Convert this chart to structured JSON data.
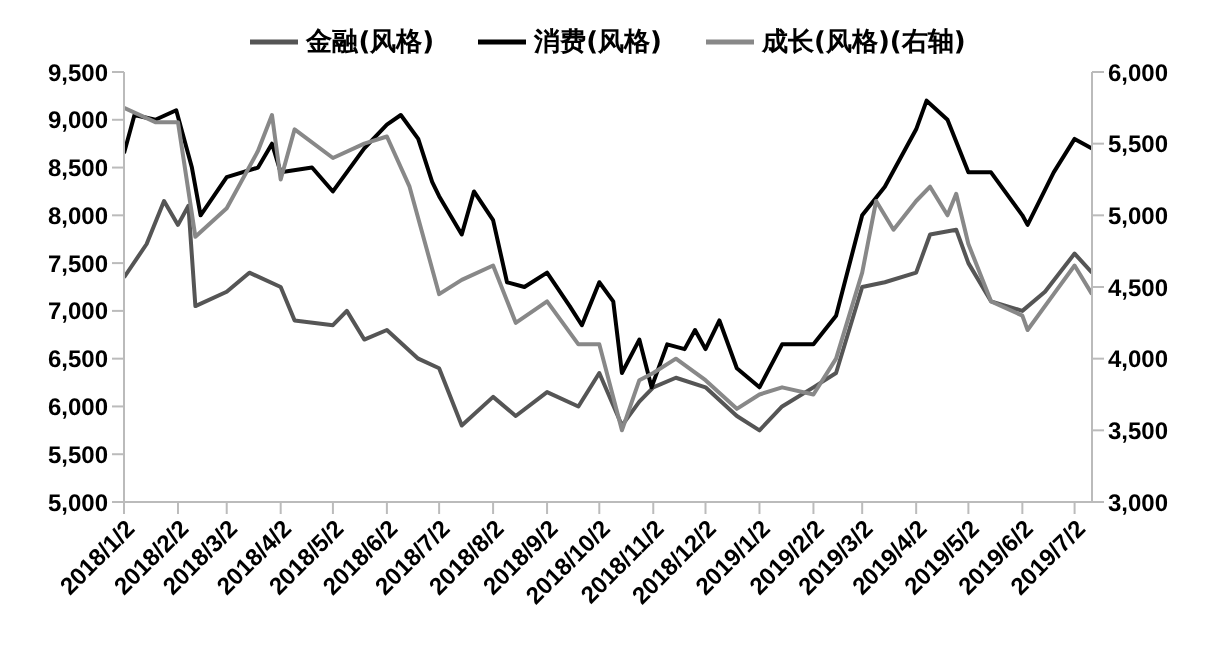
{
  "chart_data": {
    "type": "line",
    "legend": "top",
    "marker": "none",
    "line_style": "solid",
    "xlim": [
      "2018-01-02",
      "2019-07-12"
    ],
    "xticks": [
      {
        "value": "2018-01-02",
        "label": "2018/1/2"
      },
      {
        "value": "2018-02-02",
        "label": "2018/2/2"
      },
      {
        "value": "2018-03-02",
        "label": "2018/3/2"
      },
      {
        "value": "2018-04-02",
        "label": "2018/4/2"
      },
      {
        "value": "2018-05-02",
        "label": "2018/5/2"
      },
      {
        "value": "2018-06-02",
        "label": "2018/6/2"
      },
      {
        "value": "2018-07-02",
        "label": "2018/7/2"
      },
      {
        "value": "2018-08-02",
        "label": "2018/8/2"
      },
      {
        "value": "2018-09-02",
        "label": "2018/9/2"
      },
      {
        "value": "2018-10-02",
        "label": "2018/10/2"
      },
      {
        "value": "2018-11-02",
        "label": "2018/11/2"
      },
      {
        "value": "2018-12-02",
        "label": "2018/12/2"
      },
      {
        "value": "2019-01-02",
        "label": "2019/1/2"
      },
      {
        "value": "2019-02-02",
        "label": "2019/2/2"
      },
      {
        "value": "2019-03-02",
        "label": "2019/3/2"
      },
      {
        "value": "2019-04-02",
        "label": "2019/4/2"
      },
      {
        "value": "2019-05-02",
        "label": "2019/5/2"
      },
      {
        "value": "2019-06-02",
        "label": "2019/6/2"
      },
      {
        "value": "2019-07-02",
        "label": "2019/7/2"
      }
    ],
    "ylim": [
      5000,
      9500
    ],
    "yticks": [
      {
        "value": 5000,
        "label": "5,000"
      },
      {
        "value": 5500,
        "label": "5,500"
      },
      {
        "value": 6000,
        "label": "6,000"
      },
      {
        "value": 6500,
        "label": "6,500"
      },
      {
        "value": 7000,
        "label": "7,000"
      },
      {
        "value": 7500,
        "label": "7,500"
      },
      {
        "value": 8000,
        "label": "8,000"
      },
      {
        "value": 8500,
        "label": "8,500"
      },
      {
        "value": 9000,
        "label": "9,000"
      },
      {
        "value": 9500,
        "label": "9,500"
      }
    ],
    "y2lim": [
      3000,
      6000
    ],
    "y2ticks": [
      {
        "value": 3000,
        "label": "3,000"
      },
      {
        "value": 3500,
        "label": "3,500"
      },
      {
        "value": 4000,
        "label": "4,000"
      },
      {
        "value": 4500,
        "label": "4,500"
      },
      {
        "value": 5000,
        "label": "5,000"
      },
      {
        "value": 5500,
        "label": "5,500"
      },
      {
        "value": 6000,
        "label": "6,000"
      }
    ],
    "series": [
      {
        "name": "金融(风格)",
        "color": "#555555",
        "x": [
          "2018-01-02",
          "2018-01-15",
          "2018-01-25",
          "2018-02-02",
          "2018-02-08",
          "2018-02-12",
          "2018-03-02",
          "2018-03-15",
          "2018-04-02",
          "2018-04-10",
          "2018-05-02",
          "2018-05-10",
          "2018-05-20",
          "2018-06-02",
          "2018-06-20",
          "2018-07-02",
          "2018-07-15",
          "2018-08-02",
          "2018-08-15",
          "2018-09-02",
          "2018-09-20",
          "2018-10-02",
          "2018-10-15",
          "2018-10-25",
          "2018-11-02",
          "2018-11-15",
          "2018-12-02",
          "2018-12-20",
          "2019-01-02",
          "2019-01-15",
          "2019-02-02",
          "2019-02-15",
          "2019-03-02",
          "2019-03-15",
          "2019-04-02",
          "2019-04-10",
          "2019-04-25",
          "2019-05-02",
          "2019-05-15",
          "2019-06-02",
          "2019-06-15",
          "2019-07-02",
          "2019-07-12"
        ],
        "values": [
          7350,
          7700,
          8150,
          7900,
          8100,
          7050,
          7200,
          7400,
          7250,
          6900,
          6850,
          7000,
          6700,
          6800,
          6500,
          6400,
          5800,
          6100,
          5900,
          6150,
          6000,
          6350,
          5800,
          6050,
          6200,
          6300,
          6200,
          5900,
          5750,
          6000,
          6200,
          6350,
          7250,
          7300,
          7400,
          7800,
          7850,
          7500,
          7100,
          7000,
          7200,
          7600,
          7400
        ]
      },
      {
        "name": "消费(风格)",
        "color": "#000000",
        "x": [
          "2018-01-02",
          "2018-01-08",
          "2018-01-20",
          "2018-02-01",
          "2018-02-10",
          "2018-02-15",
          "2018-03-02",
          "2018-03-20",
          "2018-03-28",
          "2018-04-02",
          "2018-04-20",
          "2018-05-02",
          "2018-05-20",
          "2018-06-02",
          "2018-06-10",
          "2018-06-20",
          "2018-06-28",
          "2018-07-02",
          "2018-07-15",
          "2018-07-22",
          "2018-08-02",
          "2018-08-10",
          "2018-08-20",
          "2018-09-02",
          "2018-09-15",
          "2018-09-22",
          "2018-10-02",
          "2018-10-10",
          "2018-10-15",
          "2018-10-25",
          "2018-11-01",
          "2018-11-10",
          "2018-11-20",
          "2018-11-26",
          "2018-12-02",
          "2018-12-10",
          "2018-12-20",
          "2019-01-02",
          "2019-01-15",
          "2019-02-02",
          "2019-02-15",
          "2019-03-02",
          "2019-03-15",
          "2019-04-02",
          "2019-04-08",
          "2019-04-20",
          "2019-05-02",
          "2019-05-15",
          "2019-06-02",
          "2019-06-05",
          "2019-06-20",
          "2019-07-02",
          "2019-07-12"
        ],
        "values": [
          8650,
          9050,
          9000,
          9100,
          8500,
          8000,
          8400,
          8500,
          8750,
          8450,
          8500,
          8250,
          8700,
          8950,
          9050,
          8800,
          8350,
          8200,
          7800,
          8250,
          7950,
          7300,
          7250,
          7400,
          7050,
          6850,
          7300,
          7100,
          6350,
          6700,
          6200,
          6650,
          6600,
          6800,
          6600,
          6900,
          6400,
          6200,
          6650,
          6650,
          6950,
          8000,
          8300,
          8900,
          9200,
          9000,
          8450,
          8450,
          8000,
          7900,
          8450,
          8800,
          8700
        ]
      },
      {
        "name": "成长(风格)(右轴)",
        "color": "#888888",
        "axis": "y2",
        "x": [
          "2018-01-02",
          "2018-01-20",
          "2018-02-02",
          "2018-02-12",
          "2018-03-02",
          "2018-03-20",
          "2018-03-28",
          "2018-04-02",
          "2018-04-10",
          "2018-05-02",
          "2018-05-20",
          "2018-06-02",
          "2018-06-15",
          "2018-07-02",
          "2018-07-15",
          "2018-08-02",
          "2018-08-15",
          "2018-09-02",
          "2018-09-20",
          "2018-10-02",
          "2018-10-15",
          "2018-10-25",
          "2018-11-02",
          "2018-11-15",
          "2018-12-02",
          "2018-12-20",
          "2019-01-02",
          "2019-01-15",
          "2019-02-02",
          "2019-02-15",
          "2019-03-02",
          "2019-03-10",
          "2019-03-20",
          "2019-04-02",
          "2019-04-10",
          "2019-04-20",
          "2019-04-25",
          "2019-05-02",
          "2019-05-15",
          "2019-06-02",
          "2019-06-05",
          "2019-06-20",
          "2019-07-02",
          "2019-07-12"
        ],
        "values": [
          5750,
          5650,
          5650,
          4850,
          5050,
          5450,
          5700,
          5250,
          5600,
          5400,
          5500,
          5550,
          5200,
          4450,
          4550,
          4650,
          4250,
          4400,
          4100,
          4100,
          3500,
          3850,
          3900,
          4000,
          3850,
          3650,
          3750,
          3800,
          3750,
          4000,
          4600,
          5100,
          4900,
          5100,
          5200,
          5000,
          5150,
          4800,
          4400,
          4300,
          4200,
          4450,
          4650,
          4450
        ]
      }
    ]
  }
}
